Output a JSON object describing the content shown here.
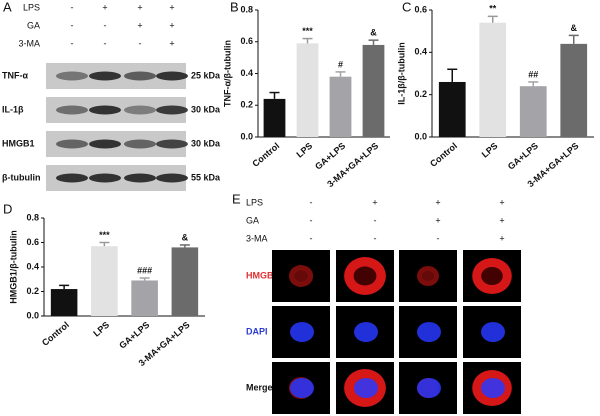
{
  "panel_a": {
    "label": "A",
    "treatments": [
      {
        "name": "LPS",
        "signs": [
          "-",
          "+",
          "+",
          "+"
        ]
      },
      {
        "name": "GA",
        "signs": [
          "-",
          "-",
          "+",
          "+"
        ]
      },
      {
        "name": "3-MA",
        "signs": [
          "-",
          "-",
          "-",
          "+"
        ]
      }
    ],
    "bands": [
      {
        "name": "TNF-α",
        "size": "25 kDa"
      },
      {
        "name": "IL-1β",
        "size": "30 kDa"
      },
      {
        "name": "HMGB1",
        "size": "30 kDa"
      },
      {
        "name": "β-tubulin",
        "size": "55 kDa"
      }
    ]
  },
  "chart_data": [
    {
      "type": "bar",
      "panel": "B",
      "y_label": "TNF-α/β-tubulin",
      "categories": [
        "Control",
        "LPS",
        "GA+LPS",
        "3-MA+GA+LPS"
      ],
      "values": [
        0.24,
        0.59,
        0.38,
        0.58
      ],
      "errors": [
        0.04,
        0.03,
        0.03,
        0.03
      ],
      "annotations": [
        null,
        "***",
        "#",
        "&"
      ],
      "colors": [
        "#111111",
        "#e2e2e2",
        "#a3a3a8",
        "#6b6b6b"
      ],
      "ylim": [
        0,
        0.8
      ],
      "yticks": [
        {
          "value": 0,
          "label": "0.0"
        },
        0.2,
        0.4,
        0.6,
        0.8
      ]
    },
    {
      "type": "bar",
      "panel": "C",
      "y_label": "IL-1β/β-tubulin",
      "categories": [
        "Control",
        "LPS",
        "GA+LPS",
        "3-MA+GA+LPS"
      ],
      "values": [
        0.26,
        0.54,
        0.24,
        0.44
      ],
      "errors": [
        0.06,
        0.03,
        0.02,
        0.04
      ],
      "annotations": [
        null,
        "**",
        "##",
        "&"
      ],
      "colors": [
        "#111111",
        "#e2e2e2",
        "#a3a3a8",
        "#6b6b6b"
      ],
      "ylim": [
        0,
        0.6
      ],
      "yticks": [
        {
          "value": 0,
          "label": "0.0"
        },
        0.2,
        0.4,
        0.6
      ]
    },
    {
      "type": "bar",
      "panel": "D",
      "y_label": "HMGB1/β-tubulin",
      "categories": [
        "Control",
        "LPS",
        "GA+LPS",
        "3-MA+GA+LPS"
      ],
      "values": [
        0.22,
        0.57,
        0.29,
        0.56
      ],
      "errors": [
        0.03,
        0.03,
        0.02,
        0.02
      ],
      "annotations": [
        null,
        "***",
        "###",
        "&"
      ],
      "colors": [
        "#111111",
        "#e2e2e2",
        "#a3a3a8",
        "#6b6b6b"
      ],
      "ylim": [
        0,
        0.8
      ],
      "yticks": [
        {
          "value": 0,
          "label": "0.0"
        },
        0.2,
        0.4,
        0.6,
        0.8
      ]
    }
  ],
  "panel_e": {
    "label": "E",
    "treatments": [
      {
        "name": "LPS",
        "signs": [
          "-",
          "+",
          "+",
          "+"
        ]
      },
      {
        "name": "GA",
        "signs": [
          "-",
          "-",
          "+",
          "+"
        ]
      },
      {
        "name": "3-MA",
        "signs": [
          "-",
          "-",
          "-",
          "+"
        ]
      }
    ],
    "rows": [
      "HMGB1",
      "DAPI",
      "Merge"
    ]
  }
}
